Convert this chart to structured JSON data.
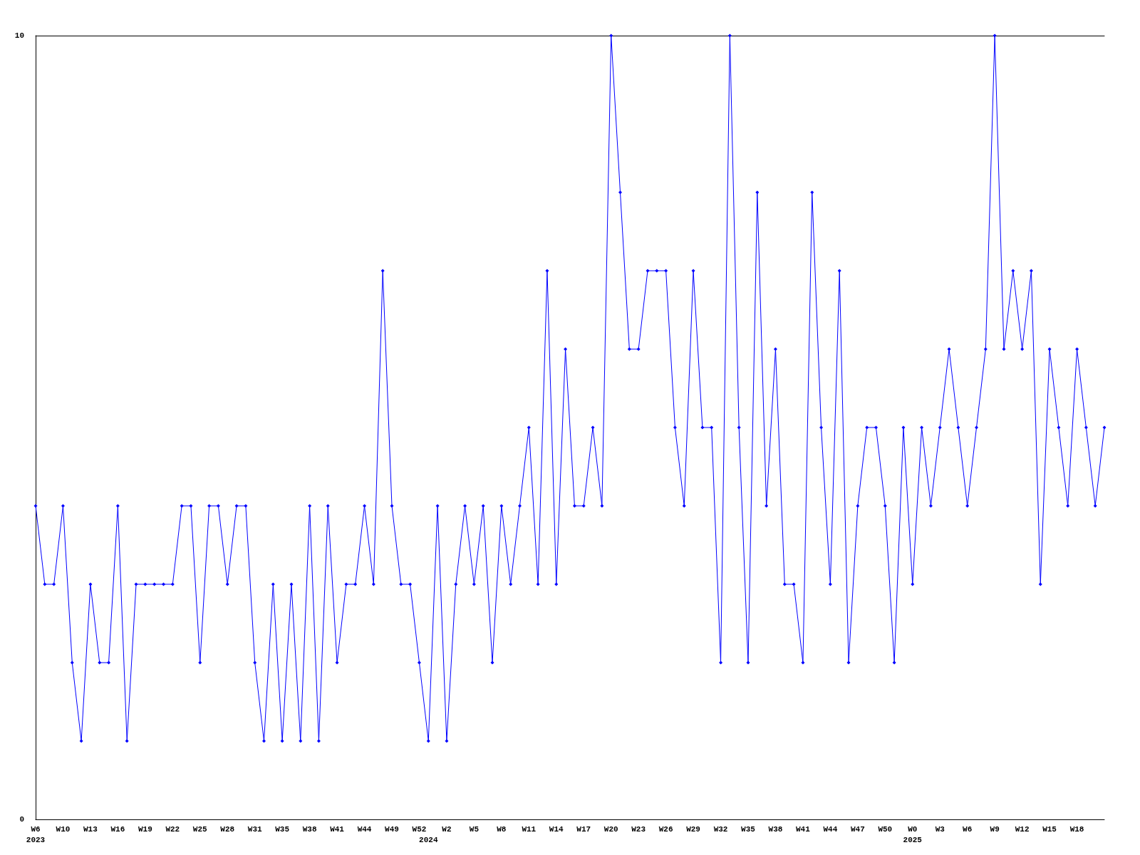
{
  "chart_data": {
    "type": "line",
    "categories": [
      "W6\n2023",
      null,
      null,
      "W10",
      null,
      null,
      "W13",
      null,
      null,
      "W16",
      null,
      null,
      "W19",
      null,
      null,
      "W22",
      null,
      null,
      "W25",
      null,
      null,
      "W28",
      null,
      null,
      "W31",
      null,
      null,
      "W35",
      null,
      null,
      "W38",
      null,
      null,
      "W41",
      null,
      null,
      "W44",
      null,
      null,
      "W49",
      null,
      null,
      "W52",
      "\n2024",
      null,
      "W2",
      null,
      null,
      "W5",
      null,
      null,
      "W8",
      null,
      null,
      "W11",
      null,
      null,
      "W14",
      null,
      null,
      "W17",
      null,
      null,
      "W20",
      null,
      null,
      "W23",
      null,
      null,
      "W26",
      null,
      null,
      "W29",
      null,
      null,
      "W32",
      null,
      null,
      "W35",
      null,
      null,
      "W38",
      null,
      null,
      "W41",
      null,
      null,
      "W44",
      null,
      null,
      "W47",
      null,
      null,
      "W50",
      null,
      null,
      "W0\n2025",
      null,
      null,
      "W3",
      null,
      null,
      "W6",
      null,
      null,
      "W9",
      null,
      null,
      "W12",
      null,
      null,
      "W15",
      null,
      null,
      "W18",
      null,
      null,
      null
    ],
    "series": [
      {
        "color": "#0000ff",
        "values": [
          4,
          3,
          3,
          4,
          2,
          1,
          3,
          2,
          2,
          4,
          1,
          3,
          3,
          3,
          3,
          3,
          4,
          4,
          2,
          4,
          4,
          3,
          4,
          4,
          2,
          1,
          3,
          1,
          3,
          1,
          4,
          1,
          4,
          2,
          3,
          3,
          4,
          3,
          7,
          4,
          3,
          3,
          2,
          1,
          4,
          1,
          3,
          4,
          3,
          4,
          2,
          4,
          3,
          4,
          5,
          3,
          7,
          3,
          6,
          4,
          4,
          5,
          4,
          10,
          8,
          6,
          6,
          7,
          7,
          7,
          5,
          4,
          7,
          5,
          5,
          2,
          10,
          5,
          2,
          8,
          4,
          6,
          3,
          3,
          2,
          8,
          5,
          3,
          7,
          2,
          4,
          5,
          5,
          4,
          2,
          5,
          3,
          5,
          4,
          5,
          6,
          5,
          4,
          5,
          6,
          10,
          6,
          7,
          6,
          7,
          3,
          6,
          5,
          4,
          6,
          5,
          4,
          5
        ]
      }
    ],
    "ylim": [
      0,
      10
    ],
    "yticks": [
      0,
      10
    ],
    "grid": false,
    "marker": "diamond",
    "line_style": "solid"
  }
}
